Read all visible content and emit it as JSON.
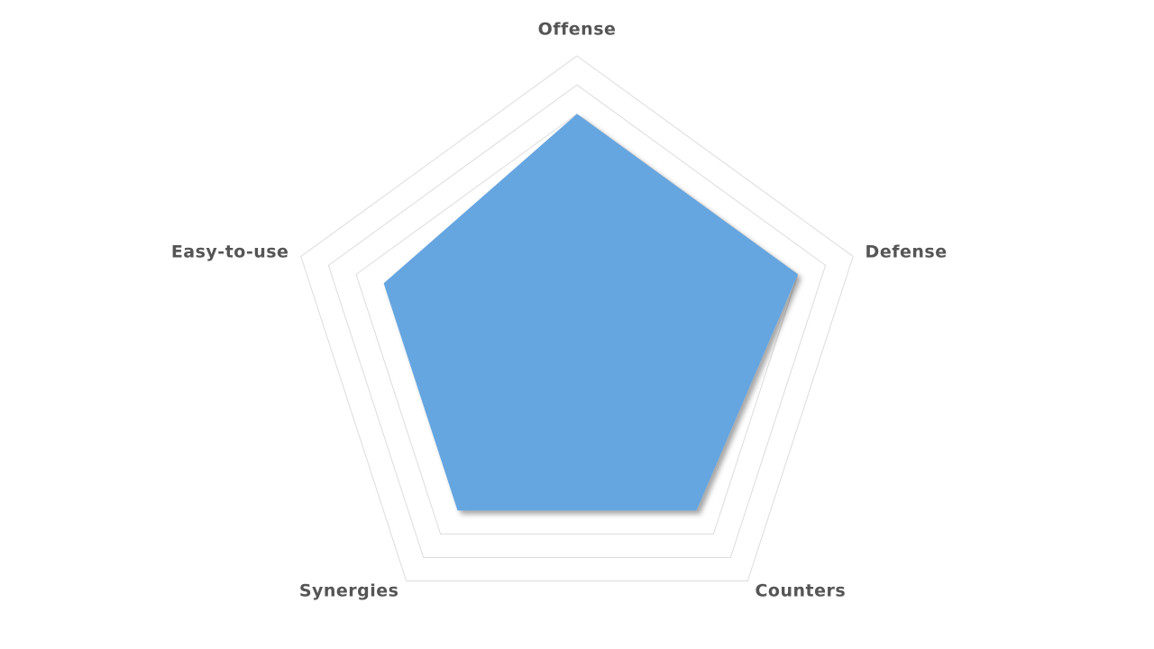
{
  "chart_data": {
    "type": "radar",
    "categories": [
      "Offense",
      "Defense",
      "Counters",
      "Synergies",
      "Easy-to-use"
    ],
    "values": [
      8,
      8,
      7,
      7,
      7
    ],
    "color": "#65a5e0",
    "ylim": [
      0,
      10
    ],
    "yticks": [
      8,
      9,
      10
    ],
    "grid": true
  }
}
